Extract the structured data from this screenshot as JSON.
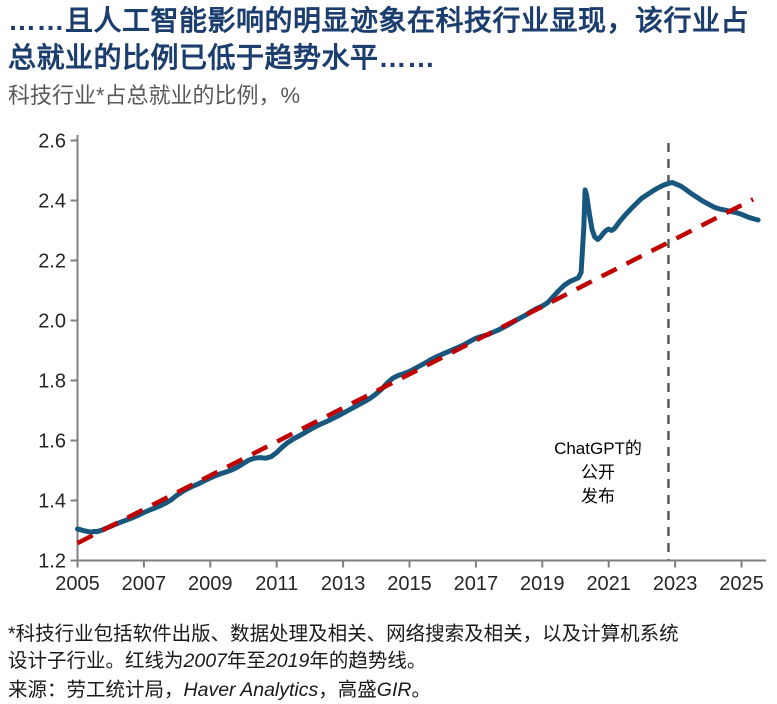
{
  "header": {
    "title_line1": "……且人工智能影响的明显迹象在科技行业显现，该行业占",
    "title_line2": "总就业的比例已低于趋势水平……",
    "subtitle": "科技行业*占总就业的比例，%"
  },
  "chart_data": {
    "type": "line",
    "title": "科技行业占总就业的比例",
    "ylabel": "%",
    "ylim": [
      1.2,
      2.6
    ],
    "xlim": [
      2005,
      2025.7
    ],
    "grid": false,
    "y_ticks": [
      "1.2",
      "1.4",
      "1.6",
      "1.8",
      "2.0",
      "2.2",
      "2.4",
      "2.6"
    ],
    "x_ticks": [
      2005,
      2007,
      2009,
      2011,
      2013,
      2015,
      2017,
      2019,
      2021,
      2023,
      2025
    ],
    "series": [
      {
        "name": "科技行业占总就业的比例",
        "color": "#17577E",
        "style": "solid",
        "points": [
          [
            2005.0,
            1.305
          ],
          [
            2005.08,
            1.303
          ],
          [
            2005.17,
            1.3
          ],
          [
            2005.25,
            1.298
          ],
          [
            2005.33,
            1.296
          ],
          [
            2005.42,
            1.295
          ],
          [
            2005.5,
            1.297
          ],
          [
            2005.58,
            1.296
          ],
          [
            2005.67,
            1.299
          ],
          [
            2005.75,
            1.302
          ],
          [
            2005.83,
            1.306
          ],
          [
            2005.92,
            1.31
          ],
          [
            2006.0,
            1.314
          ],
          [
            2006.17,
            1.322
          ],
          [
            2006.33,
            1.329
          ],
          [
            2006.5,
            1.336
          ],
          [
            2006.67,
            1.343
          ],
          [
            2006.83,
            1.351
          ],
          [
            2007.0,
            1.36
          ],
          [
            2007.17,
            1.368
          ],
          [
            2007.33,
            1.375
          ],
          [
            2007.5,
            1.383
          ],
          [
            2007.67,
            1.392
          ],
          [
            2007.83,
            1.403
          ],
          [
            2008.0,
            1.418
          ],
          [
            2008.17,
            1.43
          ],
          [
            2008.33,
            1.44
          ],
          [
            2008.5,
            1.449
          ],
          [
            2008.67,
            1.457
          ],
          [
            2008.83,
            1.466
          ],
          [
            2009.0,
            1.475
          ],
          [
            2009.17,
            1.483
          ],
          [
            2009.33,
            1.49
          ],
          [
            2009.5,
            1.496
          ],
          [
            2009.67,
            1.503
          ],
          [
            2009.83,
            1.512
          ],
          [
            2010.0,
            1.524
          ],
          [
            2010.17,
            1.535
          ],
          [
            2010.33,
            1.541
          ],
          [
            2010.5,
            1.543
          ],
          [
            2010.67,
            1.541
          ],
          [
            2010.83,
            1.546
          ],
          [
            2011.0,
            1.56
          ],
          [
            2011.17,
            1.578
          ],
          [
            2011.33,
            1.593
          ],
          [
            2011.5,
            1.605
          ],
          [
            2011.67,
            1.615
          ],
          [
            2011.83,
            1.625
          ],
          [
            2012.0,
            1.636
          ],
          [
            2012.17,
            1.646
          ],
          [
            2012.33,
            1.655
          ],
          [
            2012.5,
            1.663
          ],
          [
            2012.67,
            1.672
          ],
          [
            2012.83,
            1.681
          ],
          [
            2013.0,
            1.691
          ],
          [
            2013.17,
            1.701
          ],
          [
            2013.33,
            1.711
          ],
          [
            2013.5,
            1.721
          ],
          [
            2013.67,
            1.731
          ],
          [
            2013.83,
            1.742
          ],
          [
            2014.0,
            1.756
          ],
          [
            2014.17,
            1.772
          ],
          [
            2014.33,
            1.792
          ],
          [
            2014.5,
            1.808
          ],
          [
            2014.67,
            1.817
          ],
          [
            2014.83,
            1.823
          ],
          [
            2015.0,
            1.83
          ],
          [
            2015.17,
            1.84
          ],
          [
            2015.33,
            1.85
          ],
          [
            2015.5,
            1.86
          ],
          [
            2015.67,
            1.871
          ],
          [
            2015.83,
            1.88
          ],
          [
            2016.0,
            1.888
          ],
          [
            2016.17,
            1.896
          ],
          [
            2016.33,
            1.904
          ],
          [
            2016.5,
            1.912
          ],
          [
            2016.67,
            1.921
          ],
          [
            2016.83,
            1.931
          ],
          [
            2017.0,
            1.941
          ],
          [
            2017.17,
            1.947
          ],
          [
            2017.33,
            1.952
          ],
          [
            2017.5,
            1.96
          ],
          [
            2017.67,
            1.968
          ],
          [
            2017.83,
            1.977
          ],
          [
            2018.0,
            1.987
          ],
          [
            2018.17,
            1.998
          ],
          [
            2018.33,
            2.008
          ],
          [
            2018.5,
            2.018
          ],
          [
            2018.67,
            2.03
          ],
          [
            2018.83,
            2.04
          ],
          [
            2019.0,
            2.048
          ],
          [
            2019.17,
            2.06
          ],
          [
            2019.33,
            2.08
          ],
          [
            2019.5,
            2.1
          ],
          [
            2019.67,
            2.118
          ],
          [
            2019.83,
            2.13
          ],
          [
            2020.0,
            2.138
          ],
          [
            2020.08,
            2.142
          ],
          [
            2020.17,
            2.16
          ],
          [
            2020.25,
            2.31
          ],
          [
            2020.29,
            2.435
          ],
          [
            2020.33,
            2.42
          ],
          [
            2020.42,
            2.355
          ],
          [
            2020.5,
            2.303
          ],
          [
            2020.58,
            2.278
          ],
          [
            2020.67,
            2.27
          ],
          [
            2020.75,
            2.278
          ],
          [
            2020.83,
            2.29
          ],
          [
            2020.92,
            2.3
          ],
          [
            2021.0,
            2.305
          ],
          [
            2021.08,
            2.3
          ],
          [
            2021.17,
            2.306
          ],
          [
            2021.25,
            2.318
          ],
          [
            2021.33,
            2.33
          ],
          [
            2021.5,
            2.352
          ],
          [
            2021.67,
            2.372
          ],
          [
            2021.83,
            2.39
          ],
          [
            2022.0,
            2.408
          ],
          [
            2022.17,
            2.42
          ],
          [
            2022.33,
            2.432
          ],
          [
            2022.5,
            2.443
          ],
          [
            2022.67,
            2.452
          ],
          [
            2022.83,
            2.458
          ],
          [
            2022.92,
            2.46
          ],
          [
            2023.0,
            2.456
          ],
          [
            2023.17,
            2.448
          ],
          [
            2023.33,
            2.436
          ],
          [
            2023.5,
            2.422
          ],
          [
            2023.67,
            2.41
          ],
          [
            2023.83,
            2.398
          ],
          [
            2024.0,
            2.388
          ],
          [
            2024.17,
            2.378
          ],
          [
            2024.33,
            2.372
          ],
          [
            2024.5,
            2.368
          ],
          [
            2024.67,
            2.364
          ],
          [
            2024.83,
            2.36
          ],
          [
            2025.0,
            2.354
          ],
          [
            2025.17,
            2.346
          ],
          [
            2025.33,
            2.34
          ],
          [
            2025.5,
            2.335
          ]
        ]
      },
      {
        "name": "趋势线（2007年至2019年）",
        "color": "#C00000",
        "style": "dashed",
        "points": [
          [
            2005.0,
            1.258
          ],
          [
            2025.35,
            2.404
          ]
        ]
      }
    ],
    "vline": {
      "x": 2022.8,
      "color": "#595959",
      "style": "dashed"
    },
    "annotation": {
      "lines": [
        "ChatGPT的",
        "公开",
        "发布"
      ]
    }
  },
  "footnote": {
    "line1": "*科技行业包括软件出版、数据处理及相关、网络搜索及相关，以及计算机系统",
    "line2_pre": "设计子行业。红线为",
    "line2_year1": "2007",
    "line2_mid": "年至",
    "line2_year2": "2019",
    "line2_post": "年的趋势线。"
  },
  "source": {
    "pre": "来源：劳工统计局，",
    "haver": "Haver Analytics",
    "mid": "，高盛",
    "gir": "GIR",
    "post": "。"
  },
  "colors": {
    "title": "#1C3E6E",
    "subtitle": "#595959",
    "line": "#17577E",
    "trend": "#C00000",
    "vline": "#595959",
    "axis": "#7F7F7F",
    "tick_label": "#262626"
  }
}
